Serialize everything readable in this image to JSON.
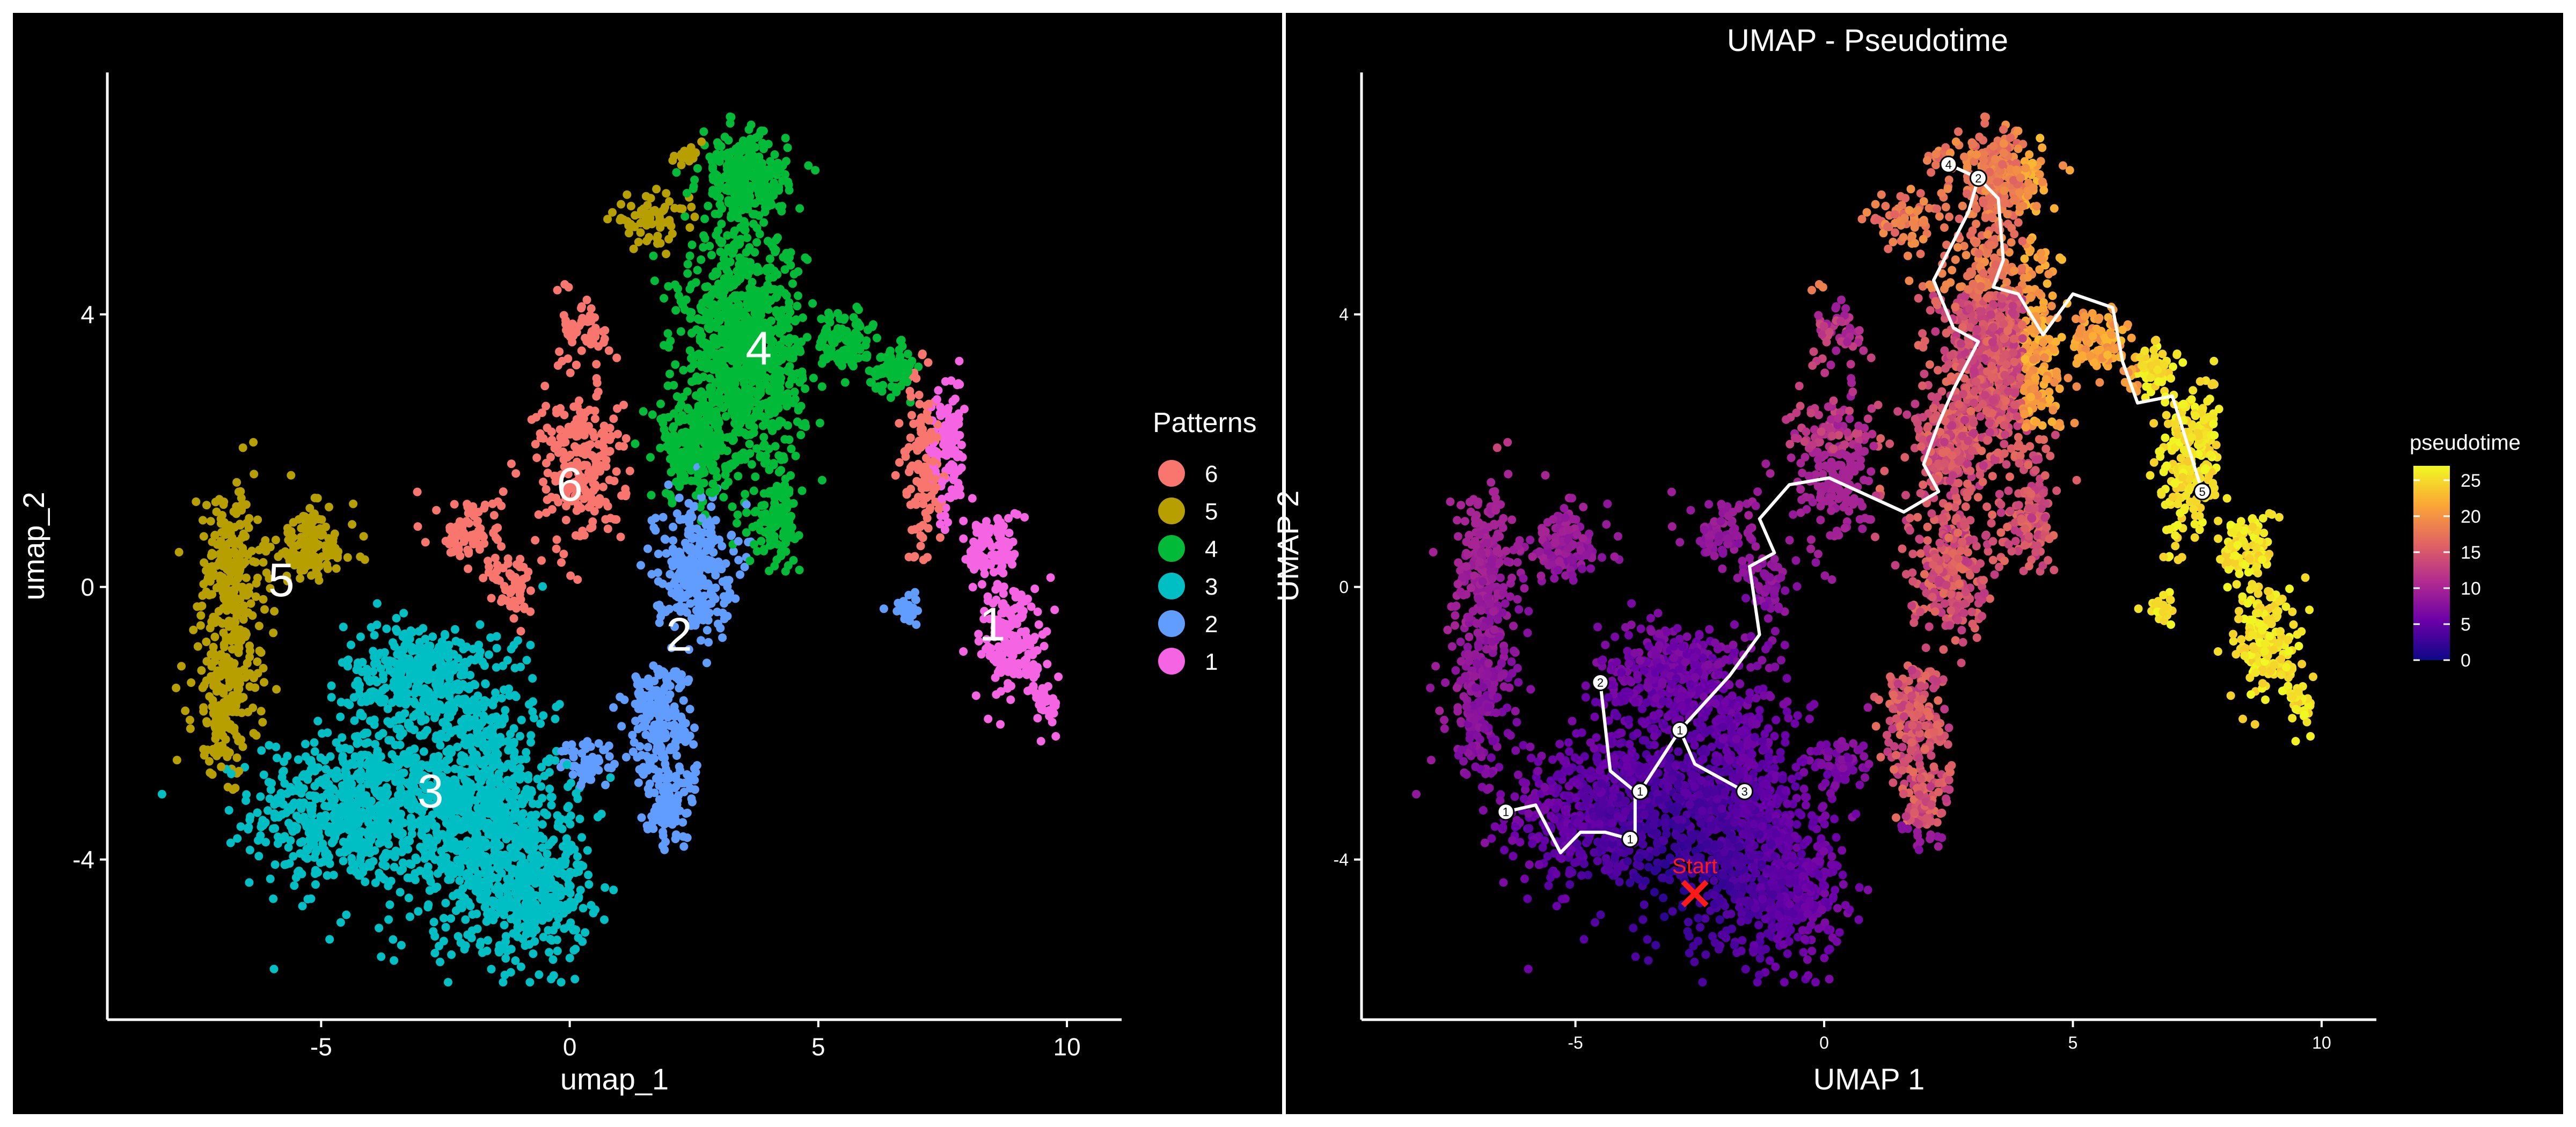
{
  "chart_data": [
    {
      "type": "scatter",
      "title": "",
      "xlabel": "umap_1",
      "ylabel": "umap_2",
      "xlim": [
        -9.3,
        11.1
      ],
      "ylim": [
        -6.35,
        7.55
      ],
      "xticks": [
        -5,
        0,
        5,
        10
      ],
      "yticks": [
        -4,
        0,
        4
      ],
      "legend": {
        "title": "Patterns",
        "placement": "right",
        "entries": [
          {
            "label": "6",
            "color": "#F8766D"
          },
          {
            "label": "5",
            "color": "#B79F00"
          },
          {
            "label": "4",
            "color": "#00BA38"
          },
          {
            "label": "3",
            "color": "#00BFC4"
          },
          {
            "label": "2",
            "color": "#619CFF"
          },
          {
            "label": "1",
            "color": "#F564E3"
          }
        ]
      },
      "annotations": [
        {
          "text": "1",
          "x": 8.5,
          "y": -0.55
        },
        {
          "text": "2",
          "x": 2.2,
          "y": -0.7
        },
        {
          "text": "3",
          "x": -2.8,
          "y": -3.0
        },
        {
          "text": "4",
          "x": 3.8,
          "y": 3.5
        },
        {
          "text": "5",
          "x": -5.8,
          "y": 0.1
        },
        {
          "text": "6",
          "x": 0.0,
          "y": 1.5
        }
      ],
      "clusters": [
        {
          "name": "3",
          "color": "#00BFC4",
          "n": 2200,
          "blobs": [
            [
              -4.5,
              -3.3,
              1.7,
              1.0
            ],
            [
              -2.0,
              -3.2,
              1.6,
              1.7
            ],
            [
              -0.7,
              -4.4,
              1.0,
              1.0
            ],
            [
              -3.0,
              -1.3,
              1.4,
              0.7
            ]
          ]
        },
        {
          "name": "5",
          "color": "#B79F00",
          "n": 650,
          "blobs": [
            [
              -6.8,
              0.2,
              0.6,
              1.2
            ],
            [
              -6.9,
              -1.6,
              0.6,
              1.0
            ],
            [
              -5.2,
              0.6,
              0.8,
              0.5
            ],
            [
              1.6,
              5.4,
              0.7,
              0.3
            ],
            [
              2.3,
              6.3,
              0.35,
              0.15
            ]
          ]
        },
        {
          "name": "4",
          "color": "#00BA38",
          "n": 1700,
          "blobs": [
            [
              3.5,
              3.4,
              1.1,
              1.6
            ],
            [
              3.5,
              6.0,
              0.8,
              0.6
            ],
            [
              2.5,
              2.0,
              0.6,
              0.6
            ],
            [
              6.5,
              3.2,
              0.4,
              0.3
            ],
            [
              4.2,
              1.0,
              0.4,
              0.5
            ],
            [
              5.5,
              3.6,
              0.5,
              0.4
            ]
          ]
        },
        {
          "name": "6",
          "color": "#F8766D",
          "n": 550,
          "blobs": [
            [
              0.2,
              1.8,
              0.8,
              1.1
            ],
            [
              0.3,
              3.8,
              0.4,
              0.5
            ],
            [
              -2.0,
              0.8,
              0.6,
              0.5
            ],
            [
              -1.1,
              0.0,
              0.4,
              0.5
            ],
            [
              7.1,
              1.8,
              0.35,
              1.3
            ]
          ]
        },
        {
          "name": "2",
          "color": "#619CFF",
          "n": 650,
          "blobs": [
            [
              2.5,
              0.3,
              0.7,
              0.9
            ],
            [
              1.8,
              -2.0,
              0.6,
              0.9
            ],
            [
              2.0,
              -3.2,
              0.45,
              0.5
            ],
            [
              6.8,
              -0.3,
              0.3,
              0.2
            ],
            [
              0.4,
              -2.6,
              0.5,
              0.3
            ]
          ]
        },
        {
          "name": "1",
          "color": "#F564E3",
          "n": 420,
          "blobs": [
            [
              7.6,
              2.0,
              0.3,
              1.0
            ],
            [
              8.5,
              0.6,
              0.5,
              0.5
            ],
            [
              8.9,
              -0.8,
              0.6,
              0.8
            ],
            [
              9.6,
              -1.7,
              0.25,
              0.4
            ]
          ]
        }
      ]
    },
    {
      "type": "scatter",
      "title": "UMAP - Pseudotime",
      "xlabel": "UMAP 1",
      "ylabel": "UMAP 2",
      "xlim": [
        -9.3,
        11.1
      ],
      "ylim": [
        -6.35,
        7.55
      ],
      "xticks": [
        -5,
        0,
        5,
        10
      ],
      "yticks": [
        -4,
        0,
        4
      ],
      "colorbar": {
        "title": "pseudotime",
        "min": 0,
        "max": 27,
        "ticks": [
          0,
          5,
          10,
          15,
          20,
          25
        ],
        "colors": [
          "#0D0887",
          "#6A00A8",
          "#B12A90",
          "#E16462",
          "#FCA636",
          "#F0F921"
        ]
      },
      "trajectory": [
        {
          "name": "main",
          "points": [
            [
              -6.4,
              -3.3
            ],
            [
              -5.8,
              -3.2
            ],
            [
              -5.3,
              -3.9
            ],
            [
              -4.9,
              -3.6
            ],
            [
              -4.4,
              -3.6
            ],
            [
              -3.9,
              -3.7
            ]
          ]
        },
        {
          "name": "left",
          "points": [
            [
              -3.8,
              -3.7
            ],
            [
              -3.8,
              -3.0
            ],
            [
              -4.3,
              -2.7
            ],
            [
              -4.5,
              -1.4
            ]
          ]
        },
        {
          "name": "upper",
          "points": [
            [
              -3.7,
              -3.0
            ],
            [
              -2.9,
              -2.1
            ],
            [
              -1.9,
              -1.3
            ],
            [
              -1.3,
              -0.7
            ],
            [
              -1.5,
              0.3
            ],
            [
              -1.0,
              0.5
            ],
            [
              -1.3,
              1.0
            ],
            [
              -0.7,
              1.5
            ],
            [
              0.1,
              1.6
            ],
            [
              1.6,
              1.1
            ],
            [
              2.3,
              1.4
            ],
            [
              2.0,
              1.8
            ],
            [
              2.3,
              2.4
            ],
            [
              2.6,
              2.9
            ],
            [
              3.1,
              3.6
            ],
            [
              2.6,
              3.8
            ],
            [
              2.2,
              4.5
            ],
            [
              2.9,
              5.5
            ],
            [
              3.1,
              6.0
            ]
          ]
        },
        {
          "name": "branch-3",
          "points": [
            [
              -2.9,
              -2.1
            ],
            [
              -2.6,
              -2.6
            ],
            [
              -1.6,
              -3.0
            ]
          ]
        },
        {
          "name": "branch-4",
          "points": [
            [
              3.1,
              6.0
            ],
            [
              2.5,
              6.2
            ]
          ]
        },
        {
          "name": "right",
          "points": [
            [
              3.1,
              6.0
            ],
            [
              3.5,
              5.7
            ],
            [
              3.6,
              4.8
            ],
            [
              3.4,
              4.4
            ],
            [
              3.9,
              4.3
            ],
            [
              4.4,
              3.7
            ],
            [
              5.0,
              4.3
            ],
            [
              5.8,
              4.1
            ],
            [
              6.0,
              3.3
            ],
            [
              6.3,
              2.7
            ],
            [
              7.0,
              2.8
            ],
            [
              7.6,
              1.4
            ]
          ]
        }
      ],
      "nodes": [
        {
          "label": "1",
          "x": -6.4,
          "y": -3.3
        },
        {
          "label": "1",
          "x": -3.9,
          "y": -3.7
        },
        {
          "label": "1",
          "x": -3.7,
          "y": -3.0
        },
        {
          "label": "2",
          "x": -4.5,
          "y": -1.4
        },
        {
          "label": "1",
          "x": -2.9,
          "y": -2.1
        },
        {
          "label": "3",
          "x": -1.6,
          "y": -3.0
        },
        {
          "label": "2",
          "x": 3.1,
          "y": 6.0
        },
        {
          "label": "4",
          "x": 2.5,
          "y": 6.2
        },
        {
          "label": "5",
          "x": 7.6,
          "y": 1.4
        }
      ],
      "start": {
        "text": "Start",
        "x": -2.6,
        "y": -4.5
      }
    }
  ]
}
